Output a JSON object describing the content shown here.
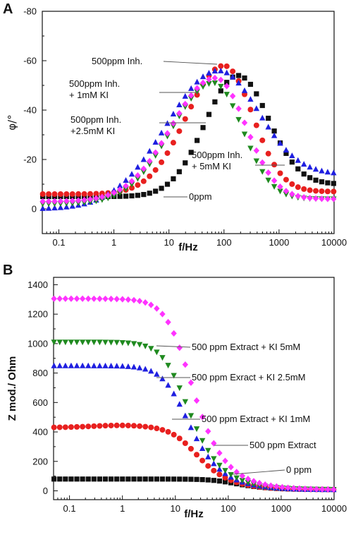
{
  "chart_data": [
    {
      "panel": "A",
      "type": "scatter",
      "xscale": "log",
      "xlim": [
        0.05,
        10000
      ],
      "ylim": [
        10,
        -80
      ],
      "xlabel": "f/Hz",
      "ylabel": "φ/°",
      "xticks": [
        "0.1",
        "1",
        "10",
        "100",
        "1000",
        "10000"
      ],
      "yticks": [
        "-80",
        "-60",
        "-40",
        "-20",
        "0"
      ],
      "series": [
        {
          "key": "0ppm",
          "color": "#111111",
          "marker": "square",
          "peak_hz": 180,
          "peak_phi": -54,
          "low_phi": -5,
          "high_phi": -10,
          "sigma_l": 0.6,
          "sigma_r": 0.55
        },
        {
          "key": "500inh",
          "color": "#e8201f",
          "marker": "circle",
          "peak_hz": 100,
          "peak_phi": -58,
          "low_phi": -6,
          "high_phi": -7,
          "sigma_l": 0.68,
          "sigma_r": 0.52
        },
        {
          "key": "500inh1",
          "color": "#1f1fe0",
          "marker": "triangle-up",
          "peak_hz": 80,
          "peak_phi": -56,
          "low_phi": 0,
          "high_phi": -14,
          "sigma_l": 0.95,
          "sigma_r": 0.72
        },
        {
          "key": "500inh2.5",
          "color": "#1f8a1f",
          "marker": "triangle-down",
          "peak_hz": 65,
          "peak_phi": -51,
          "low_phi": -2,
          "high_phi": -4,
          "sigma_l": 0.78,
          "sigma_r": 0.52
        },
        {
          "key": "500inh5",
          "color": "#ff33ff",
          "marker": "diamond",
          "peak_hz": 70,
          "peak_phi": -53,
          "low_phi": -3,
          "high_phi": -4,
          "sigma_l": 0.8,
          "sigma_r": 0.55
        }
      ],
      "annotations": [
        {
          "lines": [
            "500ppm Inh."
          ],
          "series": "500inh"
        },
        {
          "lines": [
            "500ppm Inh.",
            "+ 1mM KI"
          ],
          "series": "500inh1"
        },
        {
          "lines": [
            "500ppm Inh.",
            "+2.5mM KI"
          ],
          "series": "500inh2.5"
        },
        {
          "lines": [
            "500ppm Inh.",
            "+ 5mM KI"
          ],
          "series": "500inh5"
        },
        {
          "lines": [
            "0ppm"
          ],
          "series": "0ppm"
        }
      ]
    },
    {
      "panel": "B",
      "type": "scatter",
      "xscale": "log",
      "xlim": [
        0.05,
        10000
      ],
      "ylim": [
        -60,
        1450
      ],
      "xlabel": "f/Hz",
      "ylabel": "Z mod./ Ohm",
      "xticks": [
        "0.1",
        "1",
        "10",
        "100",
        "1000",
        "10000"
      ],
      "yticks": [
        "0",
        "200",
        "400",
        "600",
        "800",
        "1000",
        "1200",
        "1400"
      ],
      "series": [
        {
          "key": "0ppm",
          "color": "#111111",
          "marker": "square",
          "z_low": 80,
          "fc_hz": 100,
          "z_inf": 8
        },
        {
          "key": "500ext",
          "color": "#e8201f",
          "marker": "circle",
          "z_low": 430,
          "fc_hz": 18,
          "z_inf": 8,
          "bump": 15
        },
        {
          "key": "500ext1",
          "color": "#1f1fe0",
          "marker": "triangle-up",
          "z_low": 850,
          "fc_hz": 12,
          "z_inf": 8
        },
        {
          "key": "500ext2.5",
          "color": "#1f8a1f",
          "marker": "triangle-down",
          "z_low": 1010,
          "fc_hz": 12,
          "z_inf": 8
        },
        {
          "key": "500ext5",
          "color": "#ff33ff",
          "marker": "diamond",
          "z_low": 1305,
          "fc_hz": 14,
          "z_inf": 8
        }
      ],
      "annotations": [
        {
          "lines": [
            "500 ppm Extract + KI 5mM"
          ],
          "series": "500ext5"
        },
        {
          "lines": [
            "500 ppm Exract + KI 2.5mM"
          ],
          "series": "500ext2.5"
        },
        {
          "lines": [
            "500 ppm Extract + KI 1mM"
          ],
          "series": "500ext1"
        },
        {
          "lines": [
            "500 ppm Extract"
          ],
          "series": "500ext"
        },
        {
          "lines": [
            "0 ppm"
          ],
          "series": "0ppm"
        }
      ]
    }
  ]
}
